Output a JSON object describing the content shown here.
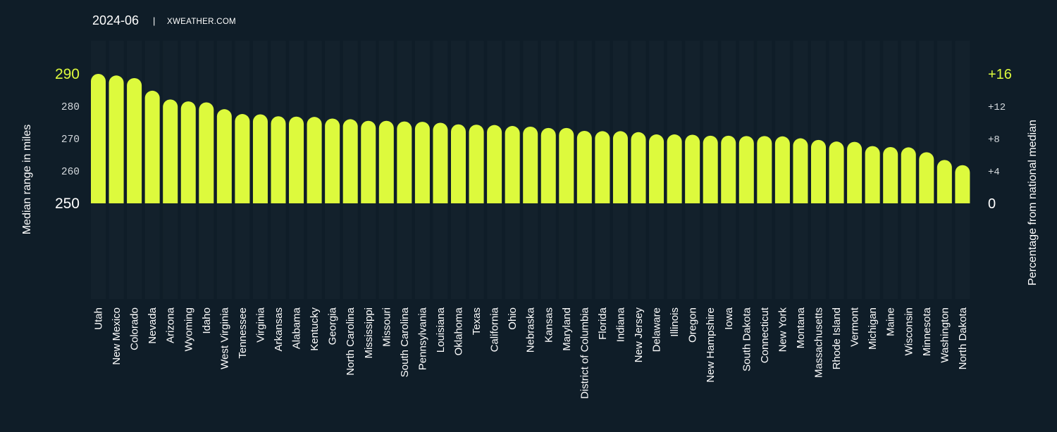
{
  "header": {
    "period": "2024-06",
    "separator": "|",
    "source": "XWEATHER.COM"
  },
  "colors": {
    "background": "#0f1d28",
    "bar": "#ddfa3d",
    "accent_text": "#ddfa3d",
    "text": "#ffffff",
    "muted_text": "#d4d9dd",
    "column_bg": "#13212c"
  },
  "chart_data": {
    "type": "bar",
    "title": "",
    "ylabel": "Median range in miles",
    "y2label": "Percentage from national median",
    "ylim": [
      250,
      290
    ],
    "y2lim": [
      0,
      16
    ],
    "yticks": [
      "290",
      "280",
      "270",
      "260",
      "250"
    ],
    "y2ticks": [
      "+16",
      "+12",
      "+8",
      "+4",
      "0"
    ],
    "categories": [
      "Utah",
      "New Mexico",
      "Colorado",
      "Nevada",
      "Arizona",
      "Wyoming",
      "Idaho",
      "West Virginia",
      "Tennessee",
      "Virginia",
      "Arkansas",
      "Alabama",
      "Kentucky",
      "Georgia",
      "North Carolina",
      "Mississippi",
      "Missouri",
      "South Carolina",
      "Pennsylvania",
      "Louisiana",
      "Oklahoma",
      "Texas",
      "California",
      "Ohio",
      "Nebraska",
      "Kansas",
      "Maryland",
      "District of Columbia",
      "Florida",
      "Indiana",
      "New Jersey",
      "Delaware",
      "Illinois",
      "Oregon",
      "New Hampshire",
      "Iowa",
      "South Dakota",
      "Connecticut",
      "New York",
      "Montana",
      "Massachusetts",
      "Rhode Island",
      "Vermont",
      "Michigan",
      "Maine",
      "Wisconsin",
      "Minnesota",
      "Washington",
      "North Dakota"
    ],
    "values": [
      290,
      289.5,
      288.7,
      284.8,
      282.1,
      281.5,
      281.2,
      279.1,
      277.6,
      277.5,
      276.9,
      276.8,
      276.7,
      276.2,
      276.0,
      275.5,
      275.5,
      275.3,
      275.2,
      274.9,
      274.4,
      274.3,
      274.2,
      273.9,
      273.7,
      273.3,
      273.3,
      272.4,
      272.3,
      272.3,
      272.0,
      271.3,
      271.3,
      271.2,
      270.9,
      270.9,
      270.8,
      270.8,
      270.7,
      270.1,
      269.6,
      269.1,
      269.0,
      267.7,
      267.4,
      267.3,
      265.8,
      263.4,
      261.8
    ],
    "grid": false,
    "legend": "none"
  }
}
